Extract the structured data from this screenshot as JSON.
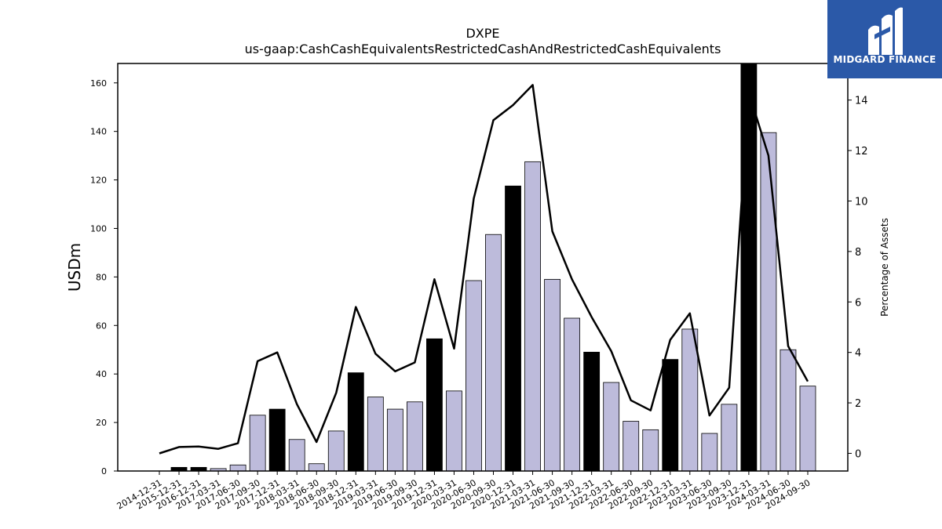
{
  "chart_data": {
    "type": "bar",
    "title": "DXPE",
    "subtitle": "us-gaap:CashCashEquivalentsRestrictedCashAndRestrictedCashEquivalents",
    "ylabel": "USDm",
    "y2label": "Percentage of Assets",
    "ylim": [
      0,
      168
    ],
    "y2lim": [
      -0.7,
      15.45
    ],
    "yticks": [
      0,
      20,
      40,
      60,
      80,
      100,
      120,
      140,
      160
    ],
    "y2ticks": [
      0,
      2,
      4,
      6,
      8,
      10,
      12,
      14
    ],
    "categories": [
      "2014-12-31",
      "2015-12-31",
      "2016-12-31",
      "2017-03-31",
      "2017-06-30",
      "2017-09-30",
      "2017-12-31",
      "2018-03-31",
      "2018-06-30",
      "2018-09-30",
      "2018-12-31",
      "2019-03-31",
      "2019-06-30",
      "2019-09-30",
      "2019-12-31",
      "2020-03-31",
      "2020-06-30",
      "2020-09-30",
      "2020-12-31",
      "2021-03-31",
      "2021-06-30",
      "2021-09-30",
      "2021-12-31",
      "2022-03-31",
      "2022-06-30",
      "2022-09-30",
      "2022-12-31",
      "2023-03-31",
      "2023-06-30",
      "2023-09-30",
      "2023-12-31",
      "2024-03-31",
      "2024-06-30",
      "2024-09-30"
    ],
    "series": [
      {
        "type": "bar",
        "values": [
          0,
          1.5,
          1.5,
          1.0,
          2.5,
          23.0,
          25.5,
          13.0,
          3.0,
          16.5,
          40.5,
          30.5,
          25.5,
          28.5,
          54.5,
          33.0,
          78.5,
          97.5,
          117.5,
          127.5,
          79.0,
          63.0,
          49.0,
          36.5,
          20.5,
          17.0,
          46.0,
          58.5,
          15.5,
          27.5,
          168.0,
          139.5,
          50.0,
          35.0
        ],
        "colors": [
          "#bdbbdb",
          "#000000",
          "#000000",
          "#bdbbdb",
          "#bdbbdb",
          "#bdbbdb",
          "#000000",
          "#bdbbdb",
          "#bdbbdb",
          "#bdbbdb",
          "#000000",
          "#bdbbdb",
          "#bdbbdb",
          "#bdbbdb",
          "#000000",
          "#bdbbdb",
          "#bdbbdb",
          "#bdbbdb",
          "#000000",
          "#bdbbdb",
          "#bdbbdb",
          "#bdbbdb",
          "#000000",
          "#bdbbdb",
          "#bdbbdb",
          "#bdbbdb",
          "#000000",
          "#bdbbdb",
          "#bdbbdb",
          "#bdbbdb",
          "#000000",
          "#bdbbdb",
          "#bdbbdb",
          "#bdbbdb"
        ]
      },
      {
        "type": "line",
        "axis": "right",
        "color": "#000000",
        "values": [
          0.0,
          0.25,
          0.27,
          0.18,
          0.4,
          3.65,
          4.0,
          1.95,
          0.45,
          2.4,
          5.8,
          3.95,
          3.25,
          3.6,
          6.9,
          4.15,
          10.1,
          13.2,
          13.8,
          14.6,
          8.8,
          6.9,
          5.4,
          4.05,
          2.1,
          1.7,
          4.5,
          5.55,
          1.5,
          2.6,
          14.3,
          11.8,
          4.25,
          2.85
        ]
      }
    ],
    "legend": "none",
    "grid": false
  },
  "logo": {
    "text": "MIDGARD FINANCE",
    "color": "#2b59a8"
  }
}
